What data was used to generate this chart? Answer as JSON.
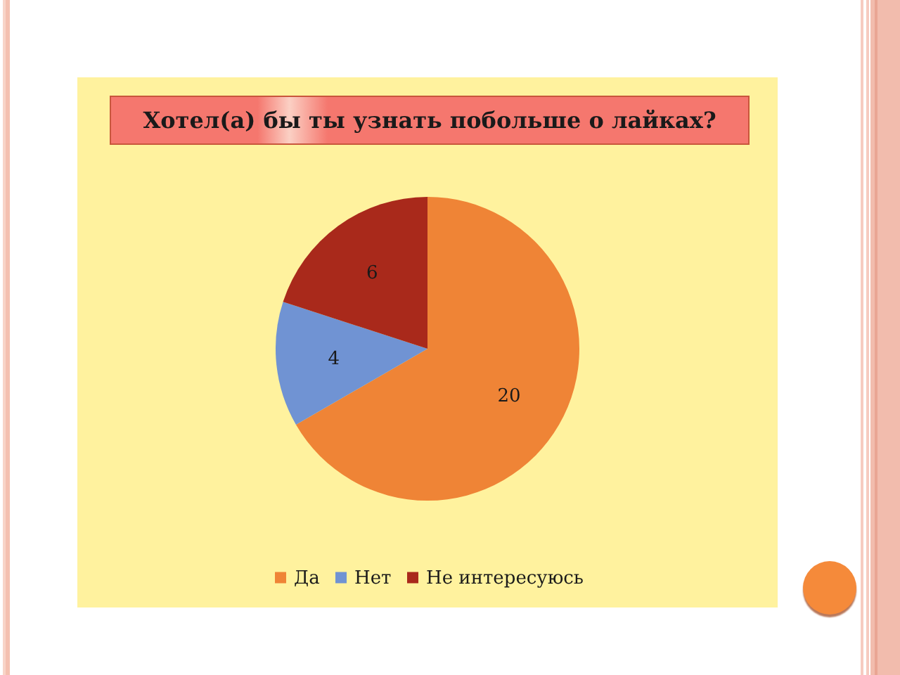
{
  "chart_data": {
    "type": "pie",
    "title": "Хотел(а) бы ты узнать побольше о лайках?",
    "categories": [
      "Да",
      "Нет",
      "Не интересуюсь"
    ],
    "values": [
      20,
      4,
      6
    ],
    "colors": [
      "#ef8436",
      "#7093d3",
      "#a9291b"
    ],
    "data_labels": true,
    "legend": "bottom"
  }
}
